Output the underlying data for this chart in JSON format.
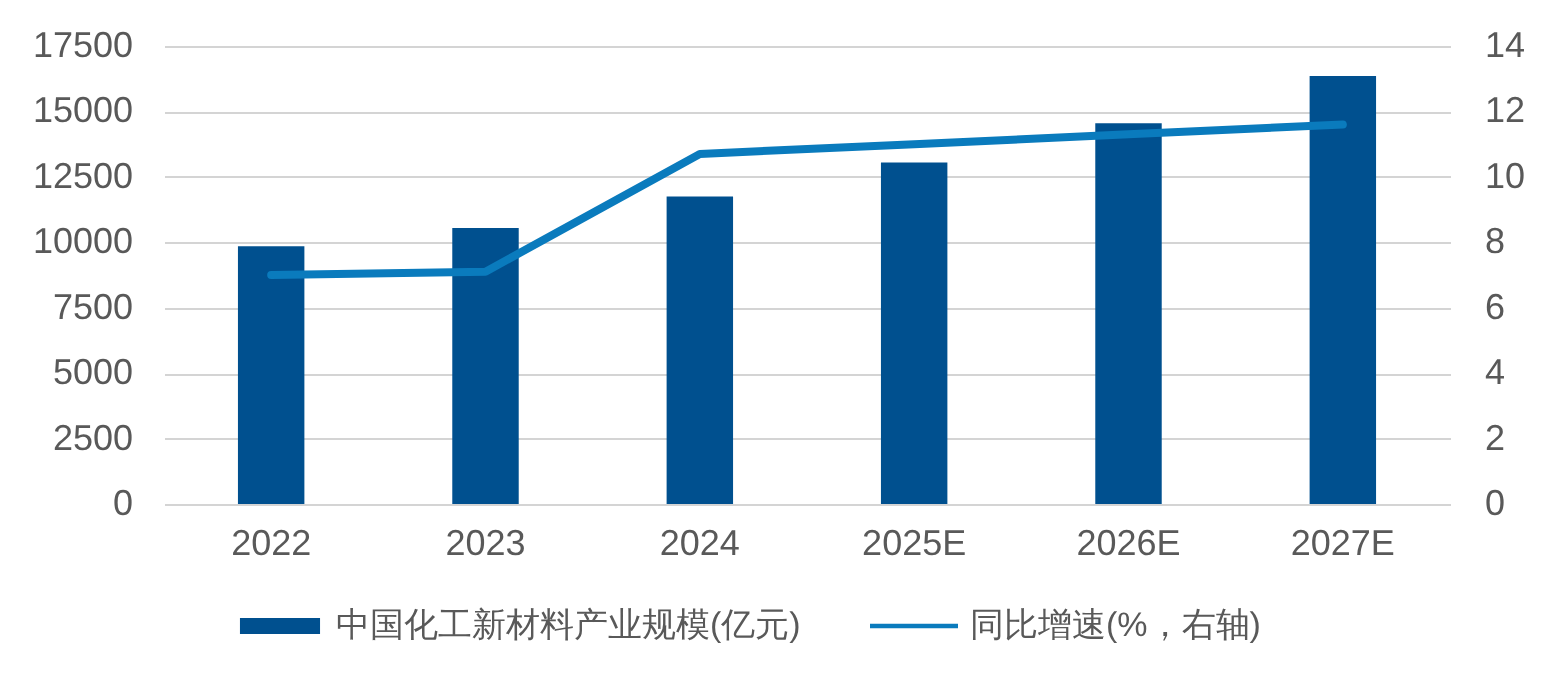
{
  "chart_data": {
    "type": "bar",
    "categories": [
      "2022",
      "2023",
      "2024",
      "2025E",
      "2026E",
      "2027E"
    ],
    "series": [
      {
        "name": "中国化工新材料产业规模(亿元)",
        "type": "bar",
        "color": "#00508f",
        "values": [
          9850,
          10550,
          11750,
          13050,
          14550,
          16350
        ]
      },
      {
        "name": "同比增速(%，右轴)",
        "type": "line",
        "axis": "y2",
        "color": "#0a7bbd",
        "values": [
          7.0,
          7.1,
          10.7,
          11.0,
          11.3,
          11.6
        ]
      }
    ],
    "ylim": [
      0,
      17500
    ],
    "yticks": [
      0,
      2500,
      5000,
      7500,
      10000,
      12500,
      15000,
      17500
    ],
    "y2lim": [
      0,
      14
    ],
    "y2ticks": [
      0,
      2,
      4,
      6,
      8,
      10,
      12,
      14
    ],
    "grid": "y",
    "legend": "bottom"
  }
}
